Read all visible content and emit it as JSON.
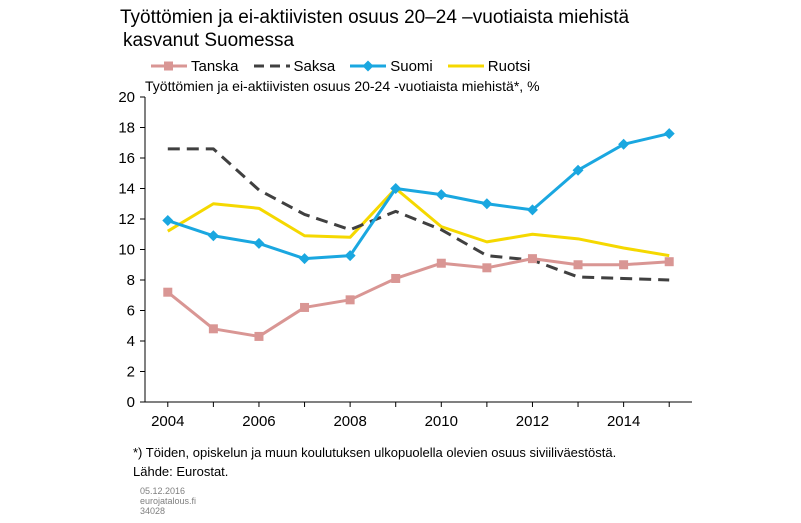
{
  "title_line1": "Työttömien ja ei-aktiivisten osuus 20–24 –vuotiaista miehistä",
  "title_line2": "kasvanut Suomessa",
  "subtitle": "Työttömien ja ei-aktiivisten osuus 20-24 -vuotiaista miehistä*, %",
  "footnote_line1": "*) Töiden, opiskelun ja muun koulutuksen ulkopuolella olevien osuus siviiliväestöstä.",
  "footnote_line2": "Lähde: Eurostat.",
  "meta_date": "05.12.2016",
  "meta_site": "eurojatalous.fi",
  "meta_id": "34028",
  "chart_data": {
    "type": "line",
    "x": [
      2004,
      2005,
      2006,
      2007,
      2008,
      2009,
      2010,
      2011,
      2012,
      2013,
      2014,
      2015
    ],
    "xticks": [
      "2004",
      "2006",
      "2008",
      "2010",
      "2012",
      "2014"
    ],
    "yticks": [
      "0",
      "2",
      "4",
      "6",
      "8",
      "10",
      "12",
      "14",
      "16",
      "18",
      "20"
    ],
    "ylim": [
      0,
      20
    ],
    "xlim": [
      2003.5,
      2015.5
    ],
    "grid": false,
    "legend": "top",
    "series": [
      {
        "name": "Tanska",
        "color": "#d99694",
        "marker": "square",
        "dash": "solid",
        "values": [
          7.2,
          4.8,
          4.3,
          6.2,
          6.7,
          8.1,
          9.1,
          8.8,
          9.4,
          9.0,
          9.0,
          9.2
        ]
      },
      {
        "name": "Saksa",
        "color": "#404040",
        "marker": "none",
        "dash": "dashed",
        "values": [
          16.6,
          16.6,
          13.9,
          12.3,
          11.3,
          12.5,
          11.3,
          9.6,
          9.3,
          8.2,
          8.1,
          8.0
        ]
      },
      {
        "name": "Suomi",
        "color": "#1aa7e0",
        "marker": "diamond",
        "dash": "solid",
        "values": [
          11.9,
          10.9,
          10.4,
          9.4,
          9.6,
          14.0,
          13.6,
          13.0,
          12.6,
          15.2,
          16.9,
          17.6
        ]
      },
      {
        "name": "Ruotsi",
        "color": "#f5d800",
        "marker": "none",
        "dash": "solid",
        "values": [
          11.2,
          13.0,
          12.7,
          10.9,
          10.8,
          14.0,
          11.5,
          10.5,
          11.0,
          10.7,
          10.1,
          9.6
        ]
      }
    ]
  }
}
